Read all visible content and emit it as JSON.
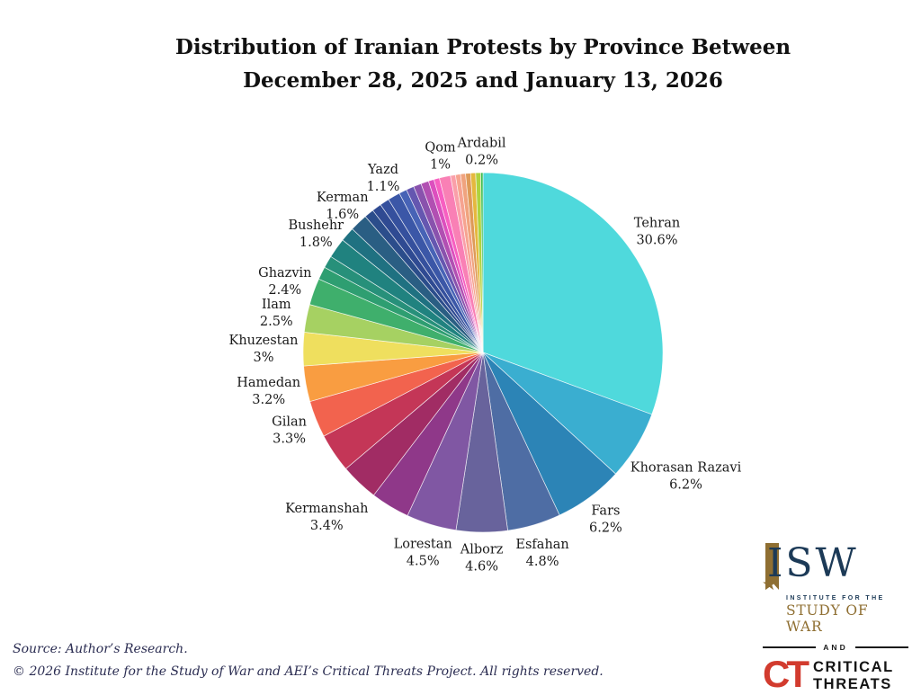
{
  "title": {
    "line1": "Distribution of Iranian Protests by Province Between",
    "line2": "December 28, 2025 and January 13, 2026"
  },
  "chart_data": {
    "type": "pie",
    "title": "Distribution of Iranian Protests by Province Between December 28, 2025 and January 13, 2026",
    "start_angle_deg": 0,
    "direction": "clockwise",
    "legend": "none",
    "label_style": "name and percent, two lines, placed radially outside slice",
    "slices": [
      {
        "label": "Tehran",
        "value": 30.6,
        "pct_label": "30.6%",
        "color": "#4FD9DC",
        "labeled": true,
        "ld": 1.18
      },
      {
        "label": "Khorasan Razavi",
        "value": 6.2,
        "pct_label": "6.2%",
        "color": "#3AAED0",
        "labeled": true,
        "ld": 1.32
      },
      {
        "label": "Fars",
        "value": 6.2,
        "pct_label": "6.2%",
        "color": "#2C84B6",
        "labeled": true,
        "ld": 1.15
      },
      {
        "label": "Esfahan",
        "value": 4.8,
        "pct_label": "4.8%",
        "color": "#4E6DA4",
        "labeled": true,
        "ld": 1.16
      },
      {
        "label": "Alborz",
        "value": 4.6,
        "pct_label": "4.6%",
        "color": "#68639C",
        "labeled": true,
        "ld": 1.14
      },
      {
        "label": "Lorestan",
        "value": 4.5,
        "pct_label": "4.5%",
        "color": "#8057A3",
        "labeled": true,
        "ld": 1.16
      },
      {
        "label": "",
        "value": 3.5,
        "pct_label": "",
        "color": "#8F3889",
        "labeled": false,
        "estimated": true
      },
      {
        "label": "Kermanshah",
        "value": 3.4,
        "pct_label": "3.4%",
        "color": "#A12C64",
        "labeled": true,
        "ld": 1.26
      },
      {
        "label": "",
        "value": 3.5,
        "pct_label": "",
        "color": "#C43657",
        "labeled": false,
        "estimated": true
      },
      {
        "label": "Gilan",
        "value": 3.3,
        "pct_label": "3.3%",
        "color": "#F2634E",
        "labeled": true,
        "ld": 1.16
      },
      {
        "label": "Hamedan",
        "value": 3.2,
        "pct_label": "3.2%",
        "color": "#F99D41",
        "labeled": true,
        "ld": 1.21
      },
      {
        "label": "Khuzestan",
        "value": 3.0,
        "pct_label": "3%",
        "color": "#EFDF5E",
        "labeled": true,
        "ld": 1.22
      },
      {
        "label": "Ilam",
        "value": 2.5,
        "pct_label": "2.5%",
        "color": "#A6D162",
        "labeled": true,
        "ld": 1.17
      },
      {
        "label": "Ghazvin",
        "value": 2.4,
        "pct_label": "2.4%",
        "color": "#3FAF6C",
        "labeled": true,
        "ld": 1.17
      },
      {
        "label": "",
        "value": 1.15,
        "pct_label": "",
        "color": "#2E9E71",
        "labeled": false,
        "estimated": true
      },
      {
        "label": "",
        "value": 1.1,
        "pct_label": "",
        "color": "#27907A",
        "labeled": false,
        "estimated": true
      },
      {
        "label": "Bushehr",
        "value": 1.8,
        "pct_label": "1.8%",
        "color": "#20827F",
        "labeled": true,
        "ld": 1.14
      },
      {
        "label": "",
        "value": 1.3,
        "pct_label": "",
        "color": "#1F7181",
        "labeled": false,
        "estimated": true
      },
      {
        "label": "Kerman",
        "value": 1.6,
        "pct_label": "1.6%",
        "color": "#2A5E83",
        "labeled": true,
        "ld": 1.13
      },
      {
        "label": "",
        "value": 0.85,
        "pct_label": "",
        "color": "#2B4D8B",
        "labeled": false,
        "estimated": true
      },
      {
        "label": "",
        "value": 0.85,
        "pct_label": "",
        "color": "#2F4A92",
        "labeled": false,
        "estimated": true
      },
      {
        "label": "",
        "value": 0.85,
        "pct_label": "",
        "color": "#35509D",
        "labeled": false,
        "estimated": true
      },
      {
        "label": "Yazd",
        "value": 1.1,
        "pct_label": "1.1%",
        "color": "#3B57A7",
        "labeled": true,
        "ld": 1.12
      },
      {
        "label": "",
        "value": 0.7,
        "pct_label": "",
        "color": "#4763B6",
        "labeled": false,
        "estimated": true
      },
      {
        "label": "",
        "value": 0.7,
        "pct_label": "",
        "color": "#6557B0",
        "labeled": false,
        "estimated": true
      },
      {
        "label": "",
        "value": 0.7,
        "pct_label": "",
        "color": "#8952AD",
        "labeled": false,
        "estimated": true
      },
      {
        "label": "",
        "value": 0.7,
        "pct_label": "",
        "color": "#B14FB2",
        "labeled": false,
        "estimated": true
      },
      {
        "label": "",
        "value": 0.5,
        "pct_label": "",
        "color": "#DC4FBE",
        "labeled": false,
        "estimated": true
      },
      {
        "label": "",
        "value": 0.5,
        "pct_label": "",
        "color": "#F75FC1",
        "labeled": false,
        "estimated": true
      },
      {
        "label": "Qom",
        "value": 1.0,
        "pct_label": "1%",
        "color": "#F980B5",
        "labeled": true,
        "ld": 1.12
      },
      {
        "label": "",
        "value": 0.45,
        "pct_label": "",
        "color": "#FA9FA9",
        "labeled": false,
        "estimated": true
      },
      {
        "label": "",
        "value": 0.45,
        "pct_label": "",
        "color": "#F6A390",
        "labeled": false,
        "estimated": true
      },
      {
        "label": "",
        "value": 0.45,
        "pct_label": "",
        "color": "#F0A37E",
        "labeled": false,
        "estimated": true
      },
      {
        "label": "",
        "value": 0.45,
        "pct_label": "",
        "color": "#DE9A58",
        "labeled": false,
        "estimated": true
      },
      {
        "label": "",
        "value": 0.45,
        "pct_label": "",
        "color": "#E5B83E",
        "labeled": false,
        "estimated": true
      },
      {
        "label": "",
        "value": 0.45,
        "pct_label": "",
        "color": "#AFD23F",
        "labeled": false,
        "estimated": true
      },
      {
        "label": "Ardabil",
        "value": 0.2,
        "pct_label": "0.2%",
        "color": "#3DBE52",
        "labeled": true,
        "ld": 1.12
      }
    ]
  },
  "footer": {
    "line1": "Source: Author’s Research.",
    "line2": "© 2026 Institute for the Study of War and AEI’s Critical Threats Project. All rights reserved."
  },
  "logos": {
    "isw": {
      "letters": "ISW",
      "line1": "INSTITUTE FOR THE",
      "line2": "STUDY OF WAR",
      "star": "★"
    },
    "and_label": "AND",
    "ct": {
      "monogram": "CT",
      "line1": "CRITICAL",
      "line2": "THREATS"
    }
  },
  "colors": {
    "title_text": "#111111",
    "slice_label_text": "#1a1a1a",
    "footer_text": "#2B2D52",
    "isw_navy": "#1C3A57",
    "isw_gold": "#8F6F32",
    "ct_red": "#D23B2E",
    "ct_black": "#141414"
  }
}
